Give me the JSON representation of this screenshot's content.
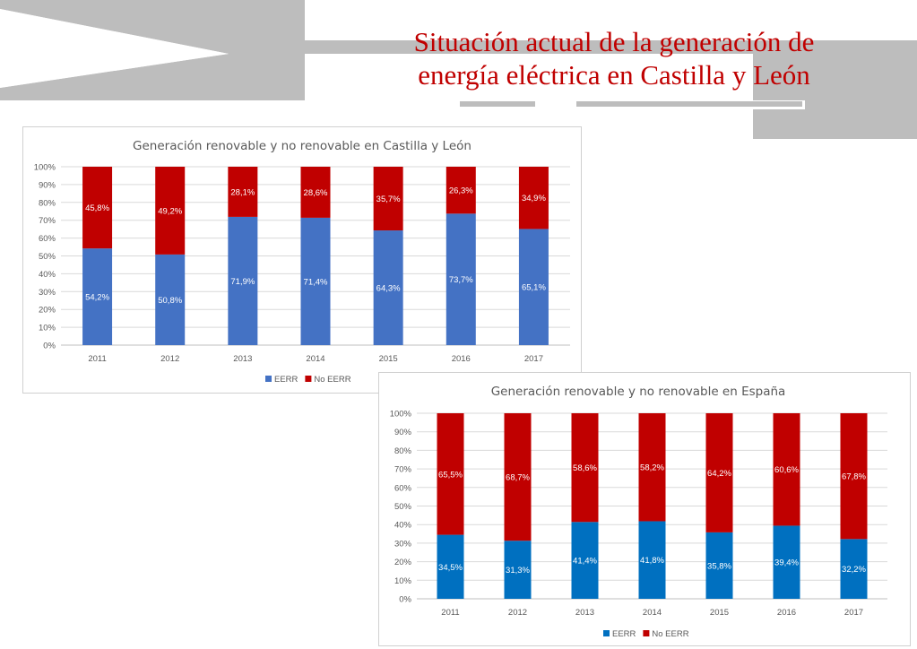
{
  "slide": {
    "title_line1": "Situación actual de la generación de",
    "title_line2": "energía eléctrica en Castilla y León"
  },
  "colors": {
    "eerr_castilla": "#4472c4",
    "eerr_espana": "#0070c0",
    "no_eerr": "#c00000",
    "title": "#c00000",
    "decor_gray": "#bfbfbf"
  },
  "chart_data": [
    {
      "type": "bar",
      "stacked": true,
      "title": "Generación renovable y no renovable en Castilla y León",
      "categories": [
        "2011",
        "2012",
        "2013",
        "2014",
        "2015",
        "2016",
        "2017"
      ],
      "series": [
        {
          "name": "EERR",
          "values": [
            54.2,
            50.8,
            71.9,
            71.4,
            64.3,
            73.7,
            65.1
          ],
          "labels": [
            "54,2%",
            "50,8%",
            "71,9%",
            "71,4%",
            "64,3%",
            "73,7%",
            "65,1%"
          ]
        },
        {
          "name": "No EERR",
          "values": [
            45.8,
            49.2,
            28.1,
            28.6,
            35.7,
            26.3,
            34.9
          ],
          "labels": [
            "45,8%",
            "49,2%",
            "28,1%",
            "28,6%",
            "35,7%",
            "26,3%",
            "34,9%"
          ]
        }
      ],
      "ylim": [
        0,
        100
      ],
      "yticks": [
        "0%",
        "10%",
        "20%",
        "30%",
        "40%",
        "50%",
        "60%",
        "70%",
        "80%",
        "90%",
        "100%"
      ],
      "xlabel": "",
      "ylabel": "",
      "grid": true,
      "legend": "bottom"
    },
    {
      "type": "bar",
      "stacked": true,
      "title": "Generación renovable y no renovable en España",
      "categories": [
        "2011",
        "2012",
        "2013",
        "2014",
        "2015",
        "2016",
        "2017"
      ],
      "series": [
        {
          "name": "EERR",
          "values": [
            34.5,
            31.3,
            41.4,
            41.8,
            35.8,
            39.4,
            32.2
          ],
          "labels": [
            "34,5%",
            "31,3%",
            "41,4%",
            "41,8%",
            "35,8%",
            "39,4%",
            "32,2%"
          ]
        },
        {
          "name": "No EERR",
          "values": [
            65.5,
            68.7,
            58.6,
            58.2,
            64.2,
            60.6,
            67.8
          ],
          "labels": [
            "65,5%",
            "68,7%",
            "58,6%",
            "58,2%",
            "64,2%",
            "60,6%",
            "67,8%"
          ]
        }
      ],
      "ylim": [
        0,
        100
      ],
      "yticks": [
        "0%",
        "10%",
        "20%",
        "30%",
        "40%",
        "50%",
        "60%",
        "70%",
        "80%",
        "90%",
        "100%"
      ],
      "xlabel": "",
      "ylabel": "",
      "grid": true,
      "legend": "bottom"
    }
  ]
}
